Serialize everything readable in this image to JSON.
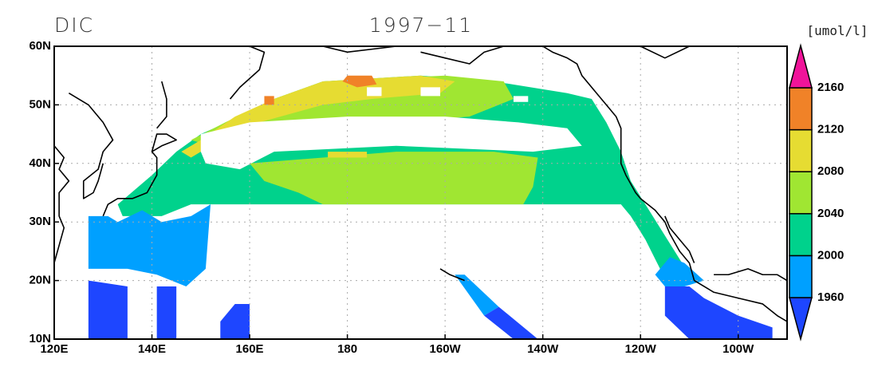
{
  "title_left": "DIC",
  "title_center": "1997−11",
  "units": "[umol/l]",
  "map": {
    "xlim": [
      120,
      270
    ],
    "ylim": [
      10,
      60
    ],
    "xticks": [
      {
        "value": 120,
        "label": "120E"
      },
      {
        "value": 140,
        "label": "140E"
      },
      {
        "value": 160,
        "label": "160E"
      },
      180,
      {
        "value": 200,
        "label": "160W"
      },
      {
        "value": 220,
        "label": "140W"
      },
      {
        "value": 240,
        "label": "120W"
      },
      {
        "value": 260,
        "label": "100W"
      }
    ],
    "yticks": [
      {
        "value": 10,
        "label": "10N"
      },
      {
        "value": 20,
        "label": "20N"
      },
      {
        "value": 30,
        "label": "30N"
      },
      {
        "value": 40,
        "label": "40N"
      },
      {
        "value": 50,
        "label": "50N"
      },
      {
        "value": 60,
        "label": "60N"
      }
    ],
    "grid": true
  },
  "colorbar": {
    "levels": [
      1960,
      2000,
      2040,
      2080,
      2120,
      2160
    ],
    "colors": [
      "#1e46ff",
      "#00a0ff",
      "#00d28c",
      "#a0e632",
      "#e6dc32",
      "#f08228",
      "#f0149a"
    ]
  }
}
